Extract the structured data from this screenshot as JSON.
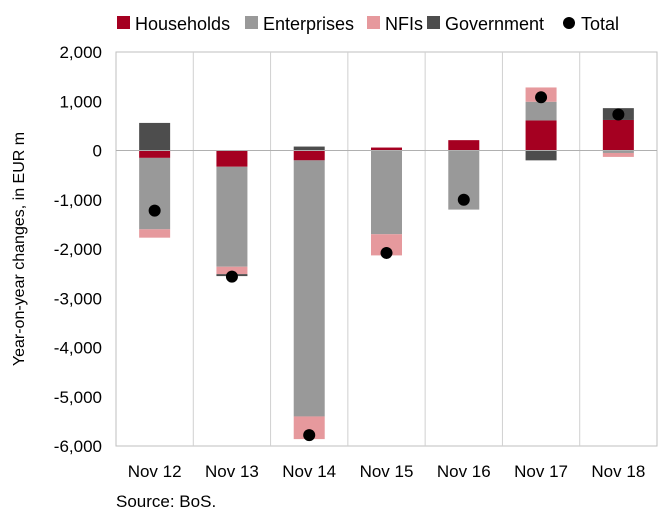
{
  "chart_data": {
    "type": "bar",
    "stacked": true,
    "categories": [
      "Nov 12",
      "Nov 13",
      "Nov 14",
      "Nov 15",
      "Nov 16",
      "Nov 17",
      "Nov 18"
    ],
    "ylabel": "Year-on-year changes, in EUR m",
    "ylim": [
      -6000,
      2000
    ],
    "yticks": [
      2000,
      1000,
      0,
      -1000,
      -2000,
      -3000,
      -4000,
      -5000,
      -6000
    ],
    "ytick_labels": [
      "2,000",
      "1,000",
      "0",
      "-1,000",
      "-2,000",
      "-3,000",
      "-4,000",
      "-5,000",
      "-6,000"
    ],
    "grid": "vertical separators between categories",
    "legend_position": "top",
    "series": [
      {
        "name": "Households",
        "color": "#a50021",
        "values": [
          -150,
          -330,
          -200,
          60,
          210,
          610,
          620
        ]
      },
      {
        "name": "Enterprises",
        "color": "#999999",
        "values": [
          -1450,
          -2030,
          -5200,
          -1700,
          -1200,
          380,
          -50
        ]
      },
      {
        "name": "NFIs",
        "color": "#e6999d",
        "values": [
          -170,
          -150,
          -460,
          -430,
          0,
          290,
          -80
        ]
      },
      {
        "name": "Government",
        "color": "#4d4d4d",
        "values": [
          560,
          -40,
          80,
          0,
          0,
          -200,
          240
        ]
      }
    ],
    "total": {
      "name": "Total",
      "color": "#000000",
      "values": [
        -1220,
        -2560,
        -5780,
        -2080,
        -1000,
        1080,
        730
      ]
    }
  },
  "source": "Source: BoS."
}
